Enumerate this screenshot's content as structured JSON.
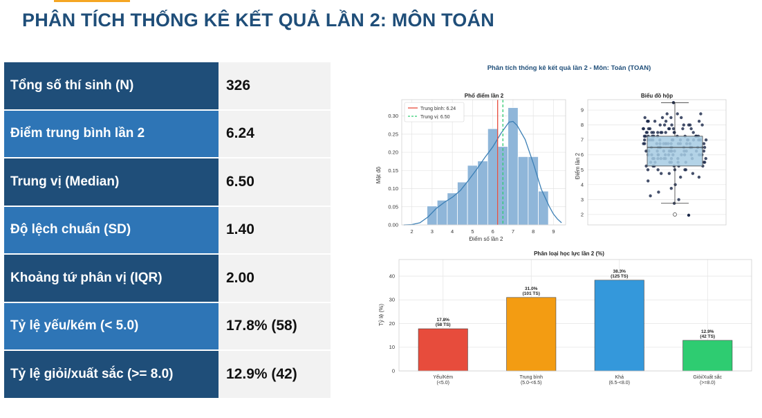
{
  "page": {
    "title": "PHÂN TÍCH THỐNG KÊ KẾT QUẢ LẦN 2: MÔN TOÁN",
    "accent_color": "#f5a623",
    "title_color": "#1f4e79"
  },
  "stats": [
    {
      "label": "Tổng số thí sinh (N)",
      "value": "326"
    },
    {
      "label": "Điểm trung bình lần 2",
      "value": "6.24"
    },
    {
      "label": "Trung vị (Median)",
      "value": "6.50"
    },
    {
      "label": "Độ lệch chuẩn (SD)",
      "value": "1.40"
    },
    {
      "label": "Khoảng tứ phân vị (IQR)",
      "value": "2.00"
    },
    {
      "label": "Tỷ lệ yếu/kém (< 5.0)",
      "value": "17.8% (58)"
    },
    {
      "label": "Tỷ lệ giỏi/xuất sắc (>= 8.0)",
      "value": "12.9% (42)"
    }
  ],
  "figure": {
    "suptitle": "Phân tích thống kê kết quả lần 2 - Môn: Toán (TOAN)"
  },
  "chart_data": [
    {
      "type": "bar",
      "subtype": "histogram-with-kde",
      "title": "Phổ điểm lần 2",
      "xlabel": "Điểm số lần 2",
      "ylabel": "Mật độ",
      "xlim": [
        1.5,
        9.6
      ],
      "ylim": [
        0,
        0.345
      ],
      "xticks": [
        2,
        3,
        4,
        5,
        6,
        7,
        8,
        9
      ],
      "yticks": [
        0.0,
        0.05,
        0.1,
        0.15,
        0.2,
        0.25,
        0.3
      ],
      "ytick_labels": [
        "0.00",
        "0.05",
        "0.10",
        "0.15",
        "0.20",
        "0.25",
        "0.30"
      ],
      "bin_edges": [
        2.75,
        3.25,
        3.75,
        4.25,
        4.75,
        5.25,
        5.75,
        6.25,
        6.75,
        7.25,
        7.75,
        8.25,
        8.75
      ],
      "densities": [
        0.052,
        0.068,
        0.088,
        0.118,
        0.164,
        0.176,
        0.265,
        0.216,
        0.323,
        0.188,
        0.188,
        0.093
      ],
      "kde": {
        "x": [
          1.6,
          2.0,
          2.4,
          2.8,
          3.2,
          3.6,
          4.0,
          4.4,
          4.8,
          5.2,
          5.6,
          6.0,
          6.4,
          6.8,
          7.0,
          7.2,
          7.6,
          8.0,
          8.4,
          8.8,
          9.0,
          9.2,
          9.4
        ],
        "y": [
          0.0,
          0.001,
          0.006,
          0.022,
          0.045,
          0.062,
          0.076,
          0.095,
          0.123,
          0.153,
          0.185,
          0.215,
          0.252,
          0.283,
          0.285,
          0.274,
          0.235,
          0.17,
          0.098,
          0.05,
          0.03,
          0.016,
          0.006
        ]
      },
      "reference_lines": [
        {
          "name": "Trung bình: 6.24",
          "x": 6.24,
          "color": "#e74c3c",
          "style": "solid"
        },
        {
          "name": "Trung vị: 6.50",
          "x": 6.5,
          "color": "#2ecc71",
          "style": "dashed"
        }
      ],
      "bar_color": "#8fb6d9",
      "kde_color": "#3b7fb5",
      "legend": "top-left",
      "grid": true
    },
    {
      "type": "boxplot",
      "title": "Biểu đồ hộp",
      "ylabel": "Điểm lần 2",
      "ylim": [
        1.3,
        9.7
      ],
      "yticks": [
        2,
        3,
        4,
        5,
        6,
        7,
        8,
        9
      ],
      "box": {
        "q1": 5.25,
        "median": 6.5,
        "q3": 7.25,
        "whisker_low": 2.75,
        "whisker_high": 9.5
      },
      "outliers": [
        2.0,
        1.95
      ],
      "box_color": "#a6cbe3",
      "point_color": "#1c2a4a",
      "grid": true
    },
    {
      "type": "bar",
      "title": "Phân loại học lực lần 2 (%)",
      "ylabel": "Tỷ lệ (%)",
      "ylim": [
        0,
        47
      ],
      "yticks": [
        0,
        10,
        20,
        30,
        40
      ],
      "categories": [
        [
          "Yếu/Kém",
          "(<5.0)"
        ],
        [
          "Trung bình",
          "(5.0-<6.5)"
        ],
        [
          "Khá",
          "(6.5-<8.0)"
        ],
        [
          "Giỏi/Xuất sắc",
          "(>=8.0)"
        ]
      ],
      "values": [
        17.8,
        31.0,
        38.3,
        12.9
      ],
      "data_labels": [
        [
          "17.8%",
          "(58 TS)"
        ],
        [
          "31.0%",
          "(101 TS)"
        ],
        [
          "38.3%",
          "(125 TS)"
        ],
        [
          "12.9%",
          "(42 TS)"
        ]
      ],
      "colors": [
        "#e74c3c",
        "#f39c12",
        "#3498db",
        "#2ecc71"
      ],
      "grid": true
    }
  ]
}
